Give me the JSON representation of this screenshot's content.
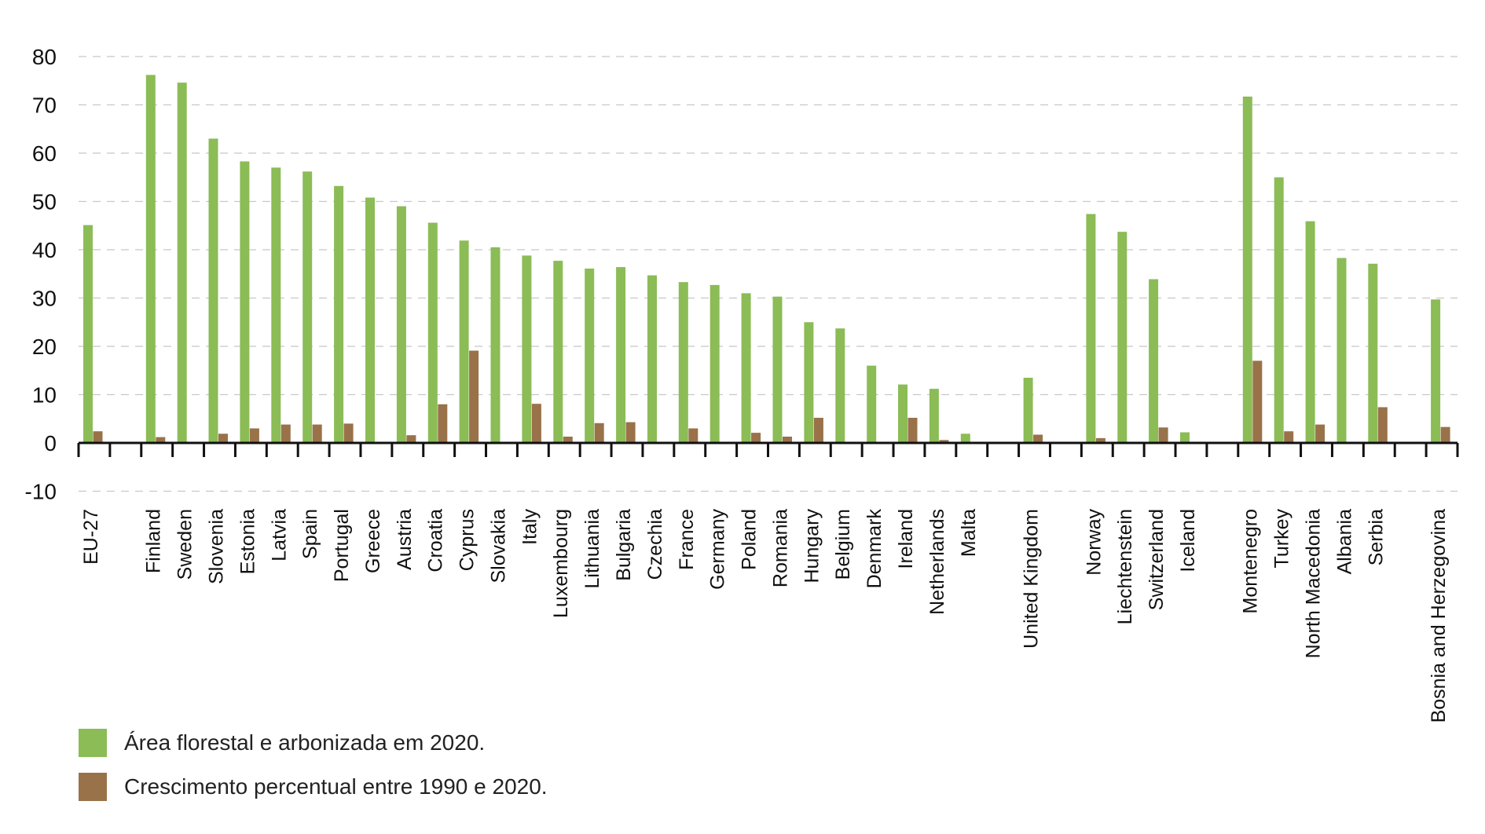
{
  "colors": {
    "forest": "#8bbc56",
    "growth": "#99724a",
    "grid": "#c8c8c8",
    "axis": "#111111"
  },
  "legend": {
    "items": [
      {
        "label": "Área florestal e arbonizada em 2020.",
        "color": "#8bbc56"
      },
      {
        "label": "Crescimento percentual entre 1990 e 2020.",
        "color": "#99724a"
      }
    ]
  },
  "chart_data": {
    "type": "bar",
    "title": "",
    "xlabel": "",
    "ylabel": "",
    "ylim": [
      -10,
      80
    ],
    "yticks": [
      80,
      70,
      60,
      50,
      40,
      30,
      20,
      10,
      0,
      -10
    ],
    "grid": true,
    "legend_position": "bottom-left",
    "categories": [
      "EU-27",
      "",
      "Finland",
      "Sweden",
      "Slovenia",
      "Estonia",
      "Latvia",
      "Spain",
      "Portugal",
      "Greece",
      "Austria",
      "Croatia",
      "Cyprus",
      "Slovakia",
      "Italy",
      "Luxembourg",
      "Lithuania",
      "Bulgaria",
      "Czechia",
      "France",
      "Germany",
      "Poland",
      "Romania",
      "Hungary",
      "Belgium",
      "Denmark",
      "Ireland",
      "Netherlands",
      "Malta",
      "",
      "United Kingdom",
      "",
      "Norway",
      "Liechtenstein",
      "Switzerland",
      "Iceland",
      "",
      "Montenegro",
      "Turkey",
      "North Macedonia",
      "Albania",
      "Serbia",
      "",
      "Bosnia and Herzegovina"
    ],
    "series": [
      {
        "name": "Área florestal e arbonizada em 2020.",
        "color": "#8bbc56",
        "values": [
          45.1,
          null,
          76.2,
          74.6,
          63.0,
          58.3,
          57.0,
          56.2,
          53.2,
          50.8,
          49.0,
          45.6,
          41.9,
          40.5,
          38.8,
          37.7,
          36.1,
          36.4,
          34.7,
          33.3,
          32.7,
          31.0,
          30.3,
          25.0,
          23.7,
          16.0,
          12.1,
          11.2,
          1.9,
          null,
          13.5,
          null,
          47.4,
          43.7,
          33.9,
          2.2,
          null,
          71.7,
          55.0,
          45.9,
          38.3,
          37.1,
          null,
          29.7
        ]
      },
      {
        "name": "Crescimento percentual entre 1990 e 2020.",
        "color": "#99724a",
        "values": [
          2.4,
          null,
          1.2,
          0,
          1.9,
          3.0,
          3.8,
          3.8,
          4.0,
          0,
          1.6,
          8.0,
          19.1,
          0,
          8.1,
          1.3,
          4.1,
          4.3,
          0,
          3.0,
          0,
          2.1,
          1.3,
          5.2,
          0,
          0,
          5.2,
          0.6,
          0,
          null,
          1.7,
          null,
          1.0,
          0,
          3.2,
          0,
          null,
          17.0,
          2.4,
          3.8,
          0,
          7.4,
          null,
          3.3
        ]
      }
    ]
  }
}
